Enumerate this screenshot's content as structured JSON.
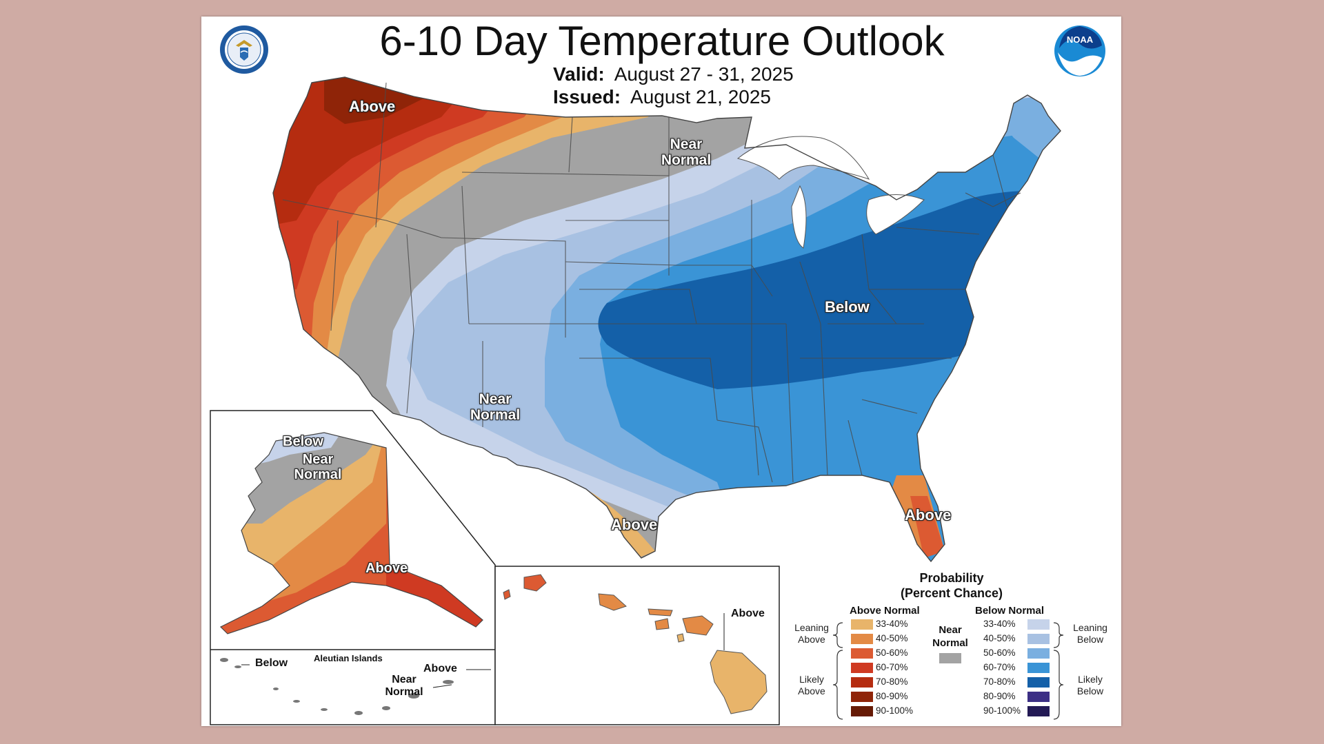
{
  "title": "6-10 Day Temperature Outlook",
  "valid_label": "Valid:",
  "valid_dates": "August 27 - 31, 2025",
  "issued_label": "Issued:",
  "issued_date": "August 21, 2025",
  "logos": {
    "left": "department-of-commerce-seal",
    "right": "noaa-logo",
    "noaa_text": "NOAA"
  },
  "map_labels": {
    "northwest": "Above",
    "upper_midwest": "Near\nNormal",
    "east": "Below",
    "southwest": "Near\nNormal",
    "texas": "Above",
    "florida": "Above"
  },
  "alaska": {
    "below": "Below",
    "near_normal": "Near\nNormal",
    "above": "Above",
    "aleutians_title": "Aleutian Islands",
    "aleutians_below": "Below",
    "aleutians_above": "Above",
    "aleutians_near": "Near\nNormal"
  },
  "hawaii": {
    "label": "Above"
  },
  "legend": {
    "title": "Probability\n(Percent Chance)",
    "above_header": "Above Normal",
    "below_header": "Below Normal",
    "near_label": "Near\nNormal",
    "leaning_above": "Leaning\nAbove",
    "likely_above": "Likely\nAbove",
    "leaning_below": "Leaning\nBelow",
    "likely_below": "Likely\nBelow",
    "ranges": [
      "33-40%",
      "40-50%",
      "50-60%",
      "60-70%",
      "70-80%",
      "80-90%",
      "90-100%"
    ],
    "above_colors": [
      "#e8b46a",
      "#e38a45",
      "#dc5a32",
      "#cf3a22",
      "#b52c10",
      "#8f2408",
      "#661a05"
    ],
    "below_colors": [
      "#c6d3ea",
      "#a8c1e2",
      "#7aafe0",
      "#3a94d6",
      "#1460a8",
      "#3c2f85",
      "#231a55"
    ],
    "near_color": "#a3a3a3"
  }
}
